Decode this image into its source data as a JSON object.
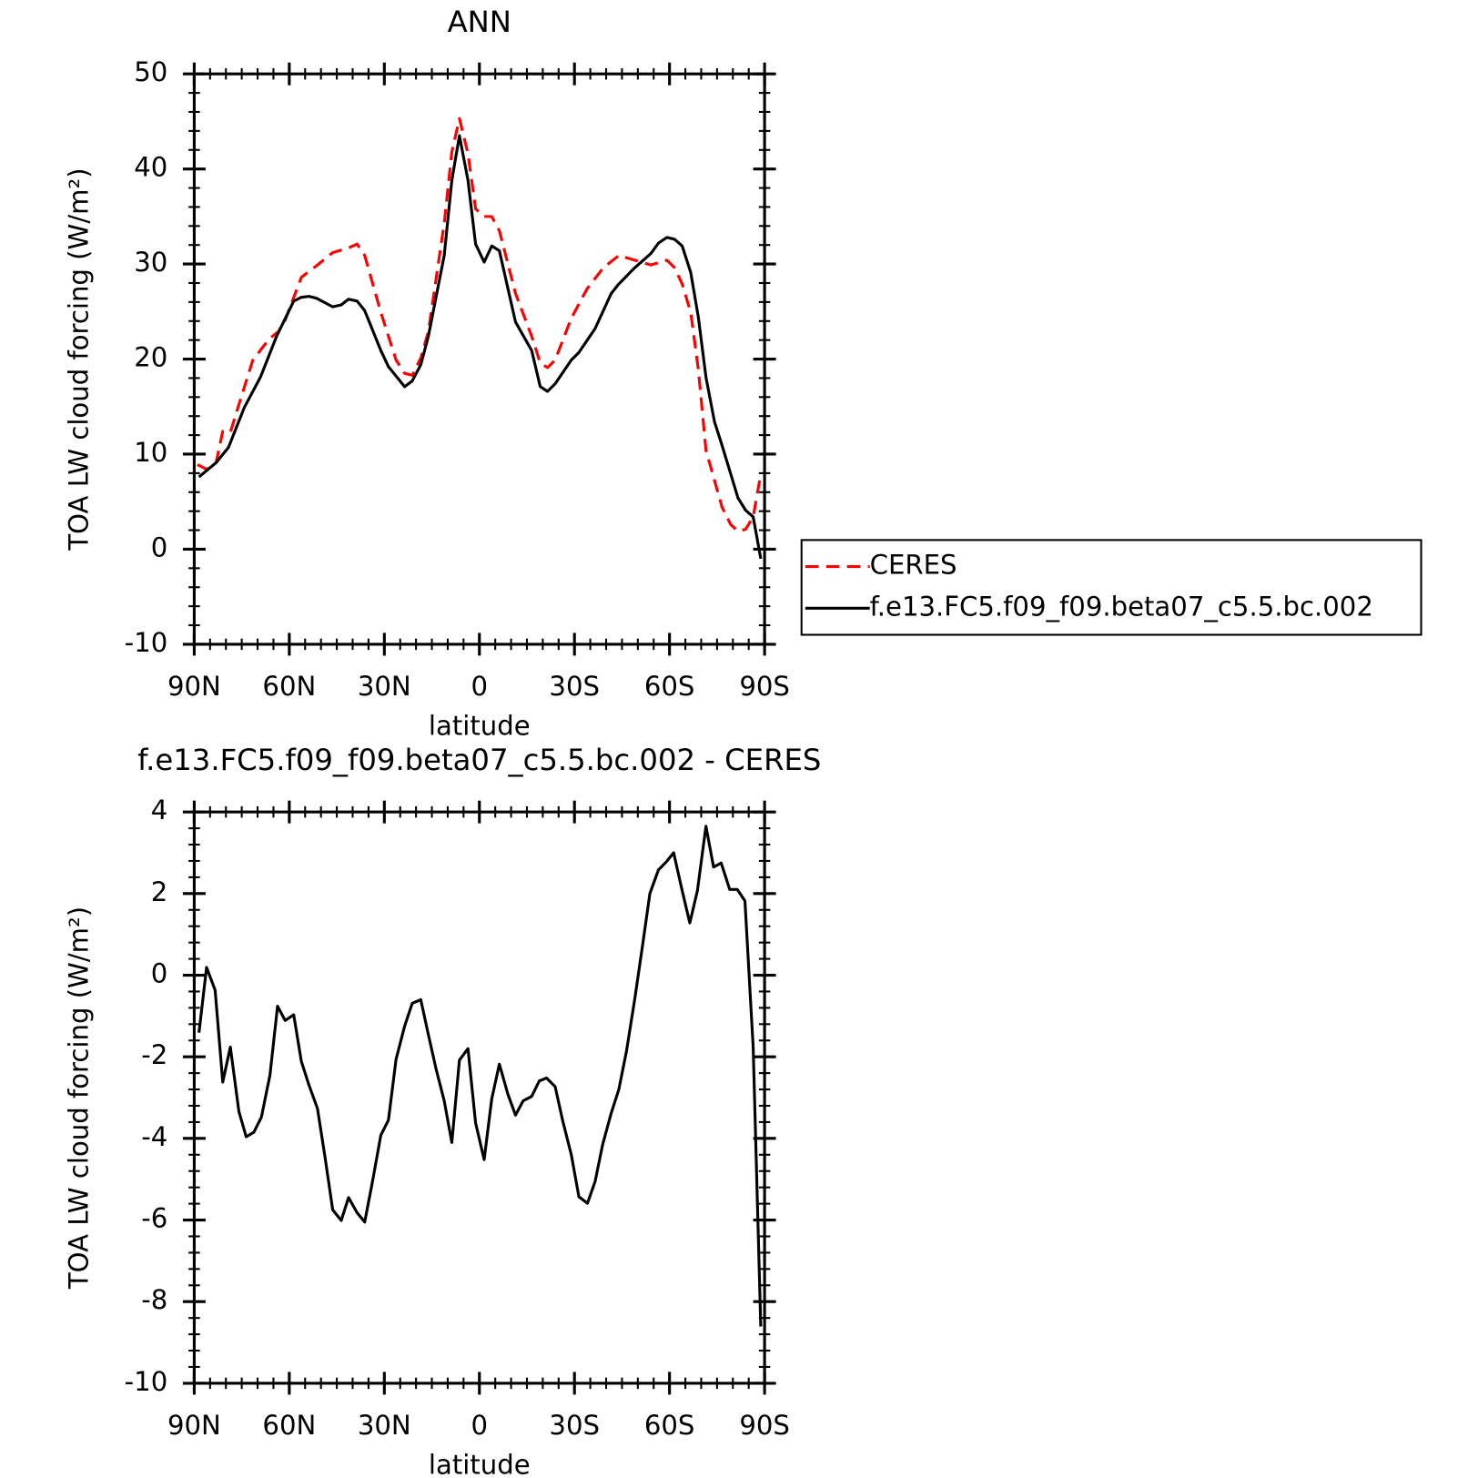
{
  "chart_data": [
    {
      "type": "line",
      "title": "ANN",
      "xlabel": "latitude",
      "ylabel": "TOA LW cloud forcing (W/m²)",
      "xlim": [
        90,
        -90
      ],
      "ylim": [
        -10,
        50
      ],
      "xticks": [
        {
          "value": 90,
          "label": "90N"
        },
        {
          "value": 60,
          "label": "60N"
        },
        {
          "value": 30,
          "label": "30N"
        },
        0,
        {
          "value": -30,
          "label": "30S"
        },
        {
          "value": -60,
          "label": "60S"
        },
        {
          "value": -90,
          "label": "90S"
        }
      ],
      "yticks": [
        -10,
        0,
        10,
        20,
        30,
        40,
        50
      ],
      "legend": "right",
      "series": [
        {
          "name": "CERES",
          "color": "#ff0000",
          "linestyle": "dashed",
          "x": [
            89,
            86,
            83.1,
            81,
            78.6,
            76.2,
            71.5,
            66.4,
            63.4,
            61.3,
            56.2,
            51.1,
            46.3,
            41.3,
            38.6,
            36.2,
            31.1,
            26.3,
            23.6,
            21.2,
            18.5,
            16.1,
            11.1,
            8.7,
            6.3,
            3.6,
            1.2,
            -1.5,
            -3.9,
            -6.3,
            -11.4,
            -16.5,
            -19.2,
            -21.5,
            -23.9,
            -29,
            -34,
            -39.1,
            -44,
            -49,
            -54.1,
            -59.2,
            -61.6,
            -64,
            -66.7,
            -69.1,
            -71.5,
            -76.6,
            -79.3,
            -81.6,
            -84,
            -86.4,
            -88.8
          ],
          "values": [
            8.9,
            8.4,
            9.1,
            12.4,
            12.3,
            14.9,
            19.9,
            22.1,
            22.9,
            24.1,
            28.6,
            29.9,
            31.2,
            31.7,
            32.1,
            30.9,
            24.9,
            19.9,
            18.5,
            18.3,
            20.1,
            22.9,
            34.3,
            41.8,
            45.3,
            41.6,
            35.8,
            35.0,
            35.0,
            33.5,
            26.9,
            22.4,
            19.6,
            19.1,
            19.9,
            24.3,
            27.4,
            29.6,
            30.9,
            30.4,
            29.9,
            30.4,
            29.6,
            27.9,
            24.9,
            18.9,
            10.4,
            4.4,
            2.6,
            1.9,
            2.1,
            3.4,
            7.9
          ]
        },
        {
          "name": "f.e13.FC5.f09_f09.beta07_c5.5.bc.002",
          "color": "#000000",
          "linestyle": "solid",
          "x": [
            88.5,
            83.1,
            79.2,
            74.2,
            69.1,
            64,
            58.6,
            56.2,
            53.8,
            51.4,
            46.3,
            43.6,
            41.3,
            38.6,
            36.2,
            31.1,
            28.7,
            23.6,
            21.2,
            18.5,
            16.1,
            11.1,
            8.7,
            6.3,
            3.6,
            1.2,
            -1.5,
            -3.9,
            -6.3,
            -11.4,
            -16.5,
            -19.2,
            -21.5,
            -23.9,
            -29,
            -31.4,
            -36.5,
            -41.6,
            -44,
            -49,
            -54.1,
            -56.5,
            -59.2,
            -61.6,
            -64,
            -66.7,
            -69.1,
            -71.5,
            -74.2,
            -76.6,
            -81.6,
            -84,
            -86.4,
            -88.8
          ],
          "values": [
            7.6,
            9.1,
            10.7,
            14.9,
            18.1,
            22.4,
            26.1,
            26.5,
            26.6,
            26.4,
            25.5,
            25.7,
            26.3,
            26.1,
            25.1,
            20.9,
            19.2,
            17.1,
            17.7,
            19.4,
            22.4,
            30.9,
            38.8,
            43.5,
            38.8,
            32.1,
            30.2,
            31.9,
            31.4,
            23.9,
            20.9,
            17.1,
            16.6,
            17.4,
            19.9,
            20.7,
            23.2,
            26.9,
            27.9,
            29.6,
            31.1,
            32.2,
            32.8,
            32.6,
            31.9,
            29.1,
            24.4,
            18.1,
            13.4,
            10.9,
            5.4,
            4.1,
            3.4,
            -1.0
          ]
        }
      ]
    },
    {
      "type": "line",
      "title": "f.e13.FC5.f09_f09.beta07_c5.5.bc.002 - CERES",
      "xlabel": "latitude",
      "ylabel": "TOA LW cloud forcing (W/m²)",
      "xlim": [
        90,
        -90
      ],
      "ylim": [
        -10,
        4
      ],
      "xticks": [
        {
          "value": 90,
          "label": "90N"
        },
        {
          "value": 60,
          "label": "60N"
        },
        {
          "value": 30,
          "label": "30N"
        },
        0,
        {
          "value": -30,
          "label": "30S"
        },
        {
          "value": -60,
          "label": "60S"
        },
        {
          "value": -90,
          "label": "90S"
        }
      ],
      "yticks": [
        -10,
        -8,
        -6,
        -4,
        -2,
        0,
        2,
        4
      ],
      "series": [
        {
          "color": "#000000",
          "linestyle": "solid",
          "x": [
            88.5,
            86.1,
            83.4,
            81,
            78.6,
            75.9,
            73.6,
            71.2,
            68.8,
            66.1,
            63.7,
            61.3,
            58.6,
            56.2,
            53.8,
            51.1,
            48.7,
            46.3,
            43.6,
            41.3,
            38.6,
            36.2,
            33.8,
            31.1,
            28.7,
            26.3,
            23.6,
            21.2,
            18.5,
            16.1,
            13.7,
            11.1,
            8.7,
            6.3,
            3.6,
            1.2,
            -1.5,
            -3.9,
            -6.3,
            -9,
            -11.4,
            -13.8,
            -16.5,
            -18.9,
            -21.2,
            -23.9,
            -26.3,
            -29,
            -31.4,
            -34.1,
            -36.5,
            -38.9,
            -41.6,
            -44,
            -46.4,
            -49,
            -51.4,
            -53.8,
            -56.5,
            -58.9,
            -61.3,
            -64,
            -66.4,
            -68.8,
            -71.5,
            -73.9,
            -76.3,
            -79,
            -81.4,
            -83.8,
            -86.4,
            -88.8
          ],
          "values": [
            -1.41,
            0.19,
            -0.37,
            -2.62,
            -1.76,
            -3.34,
            -3.96,
            -3.85,
            -3.48,
            -2.45,
            -0.76,
            -1.11,
            -0.97,
            -2.11,
            -2.69,
            -3.27,
            -4.47,
            -5.75,
            -6.01,
            -5.45,
            -5.82,
            -6.05,
            -5.08,
            -3.92,
            -3.55,
            -2.06,
            -1.25,
            -0.69,
            -0.6,
            -1.46,
            -2.29,
            -3.08,
            -4.1,
            -2.08,
            -1.8,
            -3.62,
            -4.52,
            -3.03,
            -2.18,
            -2.92,
            -3.43,
            -3.08,
            -2.97,
            -2.59,
            -2.52,
            -2.73,
            -3.57,
            -4.4,
            -5.43,
            -5.59,
            -5.06,
            -4.15,
            -3.38,
            -2.8,
            -1.87,
            -0.6,
            0.68,
            2.0,
            2.58,
            2.77,
            3.0,
            2.07,
            1.28,
            2.07,
            3.65,
            2.65,
            2.75,
            2.1,
            2.1,
            1.82,
            -1.76,
            -8.61
          ]
        }
      ]
    }
  ]
}
